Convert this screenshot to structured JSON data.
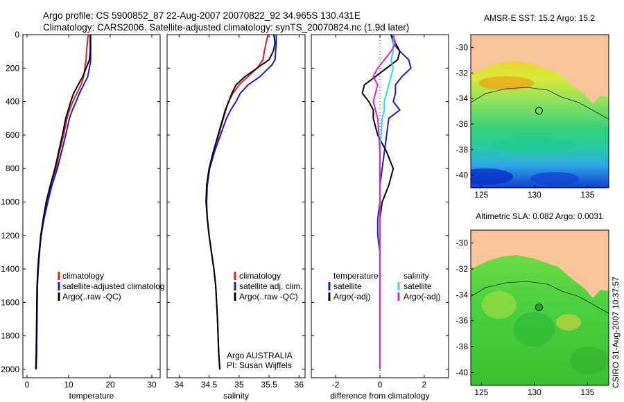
{
  "title_line1": "Argo profile: CS 5900852_87 22-Aug-2007 20070822_92 34.965S 130.431E",
  "title_line2": "Climatology: CARS2006. Satellite-adjusted climatology: synTS_20070824.nc (1.9d later)",
  "side_label": "CSIRO 31-Aug-2007 10:37:57",
  "colors": {
    "climatology": "#e0201a",
    "satellite": "#1a1ad8",
    "argo": "#000000",
    "sal_satellite": "#20e0e0",
    "sal_argo": "#e020d8",
    "land": "#f7c49a"
  },
  "chart_data": [
    {
      "id": "temperature",
      "type": "line",
      "xlabel": "temperature",
      "ylabel": "",
      "xlim": [
        -1,
        32
      ],
      "ylim": [
        2050,
        0
      ],
      "xticks": [
        "0",
        "10",
        "20",
        "30"
      ],
      "yticks": [
        "0",
        "200",
        "400",
        "600",
        "800",
        "1000",
        "1200",
        "1400",
        "1600",
        "1800",
        "2000"
      ],
      "legend": [
        "climatology",
        "satellite-adjusted climatolog",
        "Argo(..raw -QC)"
      ],
      "series": [
        {
          "name": "climatology",
          "color": "#e0201a",
          "x": [
            14.7,
            14.5,
            14.3,
            14.2,
            13.9,
            13.6,
            13.0,
            12.0,
            11.0,
            10.2,
            9.6,
            8.8,
            7.8,
            7.0,
            5.8,
            4.8,
            4.0,
            3.3,
            3.0,
            2.7,
            2.5,
            2.4,
            2.3,
            2.2
          ],
          "y": [
            0,
            50,
            100,
            150,
            200,
            250,
            300,
            350,
            400,
            450,
            500,
            600,
            700,
            800,
            900,
            1000,
            1100,
            1200,
            1300,
            1400,
            1500,
            1700,
            1900,
            2000
          ]
        },
        {
          "name": "satellite-adjusted climatology",
          "color": "#1a1ad8",
          "x": [
            15.3,
            15.3,
            15.3,
            15.3,
            15.2,
            14.6,
            13.6,
            12.6,
            11.8,
            10.9,
            10.2,
            9.3,
            8.3,
            7.3,
            6.0,
            5.0,
            4.1,
            3.4,
            3.0,
            2.7,
            2.5,
            2.4,
            2.3,
            2.2
          ],
          "y": [
            0,
            50,
            100,
            150,
            170,
            250,
            300,
            350,
            400,
            450,
            500,
            600,
            700,
            800,
            900,
            1000,
            1100,
            1200,
            1300,
            1400,
            1500,
            1700,
            1900,
            2000
          ]
        },
        {
          "name": "Argo(..raw -QC)",
          "color": "#000000",
          "x": [
            15.2,
            15.2,
            15.2,
            15.0,
            14.2,
            13.4,
            12.3,
            11.2,
            10.5,
            9.9,
            9.3,
            8.5,
            7.6,
            6.7,
            5.6,
            4.6,
            3.9,
            3.3,
            2.9,
            2.6,
            2.4,
            2.3,
            2.2,
            2.1
          ],
          "y": [
            0,
            50,
            100,
            150,
            200,
            250,
            300,
            350,
            400,
            450,
            500,
            600,
            700,
            800,
            900,
            1000,
            1100,
            1200,
            1300,
            1400,
            1500,
            1700,
            1900,
            2000
          ]
        }
      ]
    },
    {
      "id": "salinity",
      "type": "line",
      "xlabel": "salinity",
      "ylabel": "",
      "xlim": [
        33.8,
        36.1
      ],
      "ylim": [
        2050,
        0
      ],
      "xticks": [
        "34",
        "34.5",
        "35",
        "35.5",
        "36"
      ],
      "legend": [
        "climatology",
        "satellite adj. clim.",
        "Argo(..raw -QC)"
      ],
      "annotation": [
        "Argo AUSTRALIA",
        "PI: Susan Wijffels"
      ],
      "series": [
        {
          "name": "climatology",
          "color": "#e0201a",
          "x": [
            35.48,
            35.45,
            35.42,
            35.4,
            35.3,
            35.15,
            35.0,
            34.9,
            34.82,
            34.78,
            34.74,
            34.66,
            34.57,
            34.5,
            34.46,
            34.45,
            34.47,
            34.5,
            34.54,
            34.58,
            34.61,
            34.64,
            34.66,
            34.68
          ],
          "y": [
            0,
            50,
            100,
            150,
            200,
            250,
            300,
            350,
            400,
            450,
            500,
            600,
            700,
            800,
            900,
            1000,
            1100,
            1200,
            1300,
            1400,
            1500,
            1700,
            1900,
            2000
          ]
        },
        {
          "name": "satellite adj. clim.",
          "color": "#1a1ad8",
          "x": [
            35.62,
            35.62,
            35.61,
            35.6,
            35.55,
            35.35,
            35.15,
            35.02,
            34.95,
            34.86,
            34.79,
            34.69,
            34.59,
            34.51,
            34.47,
            34.46,
            34.47,
            34.5,
            34.54,
            34.58,
            34.61,
            34.64,
            34.66,
            34.68
          ],
          "y": [
            0,
            50,
            100,
            150,
            180,
            250,
            300,
            350,
            400,
            450,
            500,
            600,
            700,
            800,
            900,
            1000,
            1100,
            1200,
            1300,
            1400,
            1500,
            1700,
            1900,
            2000
          ]
        },
        {
          "name": "Argo(..raw -QC)",
          "color": "#000000",
          "x": [
            35.58,
            35.6,
            35.57,
            35.5,
            35.3,
            35.1,
            34.95,
            34.88,
            34.83,
            34.77,
            34.73,
            34.65,
            34.57,
            34.5,
            34.46,
            34.45,
            34.47,
            34.5,
            34.54,
            34.58,
            34.61,
            34.64,
            34.66,
            34.68
          ],
          "y": [
            0,
            50,
            100,
            150,
            200,
            250,
            300,
            350,
            400,
            450,
            500,
            600,
            700,
            800,
            900,
            1000,
            1100,
            1200,
            1300,
            1400,
            1500,
            1700,
            1900,
            2000
          ]
        }
      ]
    },
    {
      "id": "difference",
      "type": "line",
      "xlabel": "difference from climatology",
      "ylabel": "",
      "xlim": [
        -3.1,
        3.1
      ],
      "ylim": [
        2050,
        0
      ],
      "xticks": [
        "-2",
        "0",
        "2"
      ],
      "legend_left_title": "temperature",
      "legend_right_title": "salinity",
      "legend_left": [
        "satellite",
        "Argo(-adj)"
      ],
      "legend_right": [
        "satellite",
        "Argo(-adj)"
      ],
      "series": [
        {
          "name": "temperature satellite",
          "color": "#1a1ad8",
          "x": [
            0.5,
            0.6,
            0.9,
            1.3,
            1.4,
            1.0,
            0.7,
            0.7,
            0.6,
            0.9,
            0.4,
            0.3,
            0.2,
            0.1,
            0.0,
            0.0,
            -0.1,
            -0.1,
            0.0,
            0.0,
            0.0,
            0.0,
            0.0,
            0.0
          ],
          "y": [
            0,
            50,
            100,
            150,
            200,
            250,
            300,
            350,
            400,
            450,
            500,
            600,
            700,
            800,
            900,
            1000,
            1100,
            1200,
            1300,
            1400,
            1500,
            1700,
            1900,
            2000
          ]
        },
        {
          "name": "temperature Argo(-adj)",
          "color": "#000000",
          "x": [
            0.5,
            0.7,
            0.9,
            0.8,
            0.3,
            -0.2,
            -0.7,
            -0.8,
            -0.5,
            -0.3,
            -0.3,
            -0.1,
            0.3,
            0.6,
            0.4,
            0.1,
            0.0,
            0.0,
            0.0,
            0.0,
            0.0,
            0.0,
            0.0,
            0.0
          ],
          "y": [
            0,
            50,
            100,
            150,
            200,
            250,
            300,
            350,
            400,
            450,
            500,
            600,
            700,
            800,
            900,
            1000,
            1100,
            1200,
            1300,
            1400,
            1500,
            1700,
            1900,
            2000
          ]
        },
        {
          "name": "salinity satellite",
          "color": "#20e0e0",
          "x": [
            0.6,
            0.6,
            0.6,
            0.5,
            0.6,
            0.5,
            0.4,
            0.3,
            0.2,
            0.2,
            0.1,
            0.05,
            0.0,
            0.0,
            0.0,
            0.0,
            0.0,
            0.0,
            0.0,
            0.0,
            0.0,
            0.0,
            0.0,
            0.0
          ],
          "y": [
            0,
            50,
            100,
            150,
            200,
            250,
            300,
            350,
            400,
            450,
            500,
            600,
            700,
            800,
            900,
            1000,
            1100,
            1200,
            1300,
            1400,
            1500,
            1700,
            1900,
            2000
          ]
        },
        {
          "name": "salinity Argo(-adj)",
          "color": "#e020d8",
          "x": [
            0.6,
            0.7,
            0.5,
            0.2,
            -0.1,
            -0.3,
            -0.1,
            -0.2,
            -0.3,
            -0.2,
            -0.1,
            -0.05,
            0.0,
            0.0,
            0.0,
            0.0,
            0.0,
            0.0,
            0.0,
            0.0,
            0.0,
            0.0,
            0.0,
            0.0
          ],
          "y": [
            0,
            50,
            100,
            150,
            200,
            250,
            300,
            350,
            400,
            450,
            500,
            600,
            700,
            800,
            900,
            1000,
            1100,
            1200,
            1300,
            1400,
            1500,
            1700,
            1900,
            2000
          ]
        }
      ]
    },
    {
      "id": "sst-map",
      "type": "heatmap",
      "title": "AMSR-E SST: 15.2 Argo: 15.2",
      "xlim": [
        124,
        137
      ],
      "ylim": [
        -41,
        -29
      ],
      "xticks": [
        "125",
        "130",
        "135"
      ],
      "yticks": [
        "-30",
        "-32",
        "-34",
        "-36",
        "-38",
        "-40"
      ],
      "marker": {
        "lon": 130.431,
        "lat": -34.965,
        "fill": "none"
      }
    },
    {
      "id": "sla-map",
      "type": "heatmap",
      "title": "Altimetric SLA: 0.082 Argo: 0.0031",
      "xlim": [
        124,
        137
      ],
      "ylim": [
        -41,
        -29
      ],
      "xticks": [
        "125",
        "130",
        "135"
      ],
      "yticks": [
        "-30",
        "-32",
        "-34",
        "-36",
        "-38",
        "-40"
      ],
      "marker": {
        "lon": 130.431,
        "lat": -34.965,
        "fill": "#22aa22"
      }
    }
  ]
}
